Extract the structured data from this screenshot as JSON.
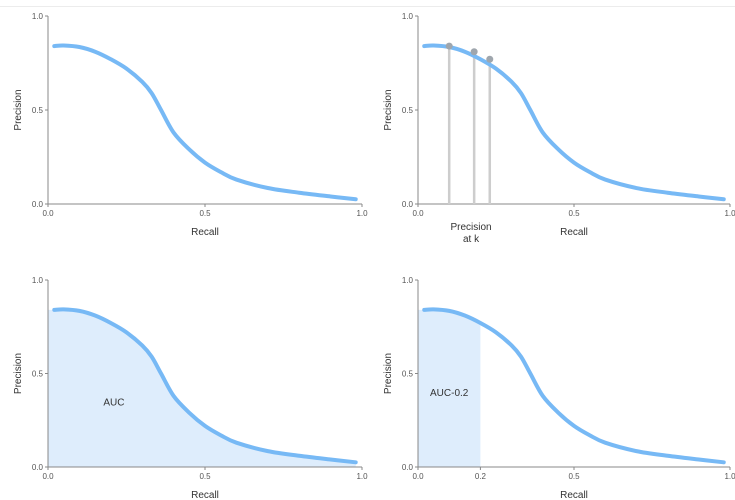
{
  "colors": {
    "curve": "#77b9f5",
    "fill": "#deedfc",
    "marker_line": "#cdcdcd",
    "marker_dot": "#9fa6ad",
    "axis": "#888888"
  },
  "chart_data": [
    {
      "type": "line",
      "xlabel": "Recall",
      "ylabel": "Precision",
      "xlim": [
        0,
        1
      ],
      "ylim": [
        0,
        1
      ],
      "x_ticks": [
        "0.0",
        "0.5",
        "1.0"
      ],
      "y_ticks": [
        "0.0",
        "0.5",
        "1.0"
      ],
      "series": [
        {
          "x": [
            0.02,
            0.05,
            0.1,
            0.15,
            0.2,
            0.25,
            0.3,
            0.33,
            0.36,
            0.4,
            0.45,
            0.5,
            0.55,
            0.6,
            0.7,
            0.8,
            0.9,
            0.98
          ],
          "y": [
            0.84,
            0.843,
            0.835,
            0.81,
            0.77,
            0.72,
            0.65,
            0.59,
            0.5,
            0.38,
            0.29,
            0.22,
            0.17,
            0.13,
            0.085,
            0.06,
            0.04,
            0.025
          ]
        }
      ],
      "grid": false
    },
    {
      "type": "line",
      "xlabel": "Recall",
      "ylabel": "Precision",
      "xlim": [
        0,
        1
      ],
      "ylim": [
        0,
        1
      ],
      "x_ticks": [
        "0.0",
        "0.5",
        "1.0"
      ],
      "y_ticks": [
        "0.0",
        "0.5",
        "1.0"
      ],
      "series": [
        {
          "x": [
            0.02,
            0.05,
            0.1,
            0.15,
            0.2,
            0.25,
            0.3,
            0.33,
            0.36,
            0.4,
            0.45,
            0.5,
            0.55,
            0.6,
            0.7,
            0.8,
            0.9,
            0.98
          ],
          "y": [
            0.84,
            0.843,
            0.835,
            0.81,
            0.77,
            0.72,
            0.65,
            0.59,
            0.5,
            0.38,
            0.29,
            0.22,
            0.17,
            0.13,
            0.085,
            0.06,
            0.04,
            0.025
          ]
        }
      ],
      "markers": [
        {
          "x": 0.1,
          "y": 0.84
        },
        {
          "x": 0.18,
          "y": 0.81
        },
        {
          "x": 0.23,
          "y": 0.77
        }
      ],
      "annotation": "Precision\nat k",
      "grid": false
    },
    {
      "type": "area",
      "xlabel": "Recall",
      "ylabel": "Precision",
      "xlim": [
        0,
        1
      ],
      "ylim": [
        0,
        1
      ],
      "x_ticks": [
        "0.0",
        "0.5",
        "1.0"
      ],
      "y_ticks": [
        "0.0",
        "0.5",
        "1.0"
      ],
      "series": [
        {
          "x": [
            0.02,
            0.05,
            0.1,
            0.15,
            0.2,
            0.25,
            0.3,
            0.33,
            0.36,
            0.4,
            0.45,
            0.5,
            0.55,
            0.6,
            0.7,
            0.8,
            0.9,
            0.98
          ],
          "y": [
            0.84,
            0.843,
            0.835,
            0.81,
            0.77,
            0.72,
            0.65,
            0.59,
            0.5,
            0.38,
            0.29,
            0.22,
            0.17,
            0.13,
            0.085,
            0.06,
            0.04,
            0.025
          ]
        }
      ],
      "shade": [
        0,
        1
      ],
      "annotation": "AUC",
      "grid": false
    },
    {
      "type": "area",
      "xlabel": "Recall",
      "ylabel": "Precision",
      "xlim": [
        0,
        1
      ],
      "ylim": [
        0,
        1
      ],
      "x_ticks": [
        "0.0",
        "0.2",
        "0.5",
        "1.0"
      ],
      "y_ticks": [
        "0.0",
        "0.5",
        "1.0"
      ],
      "series": [
        {
          "x": [
            0.02,
            0.05,
            0.1,
            0.15,
            0.2,
            0.25,
            0.3,
            0.33,
            0.36,
            0.4,
            0.45,
            0.5,
            0.55,
            0.6,
            0.7,
            0.8,
            0.9,
            0.98
          ],
          "y": [
            0.84,
            0.843,
            0.835,
            0.81,
            0.77,
            0.72,
            0.65,
            0.59,
            0.5,
            0.38,
            0.29,
            0.22,
            0.17,
            0.13,
            0.085,
            0.06,
            0.04,
            0.025
          ]
        }
      ],
      "shade": [
        0,
        0.2
      ],
      "annotation": "AUC-0.2",
      "grid": false
    }
  ]
}
